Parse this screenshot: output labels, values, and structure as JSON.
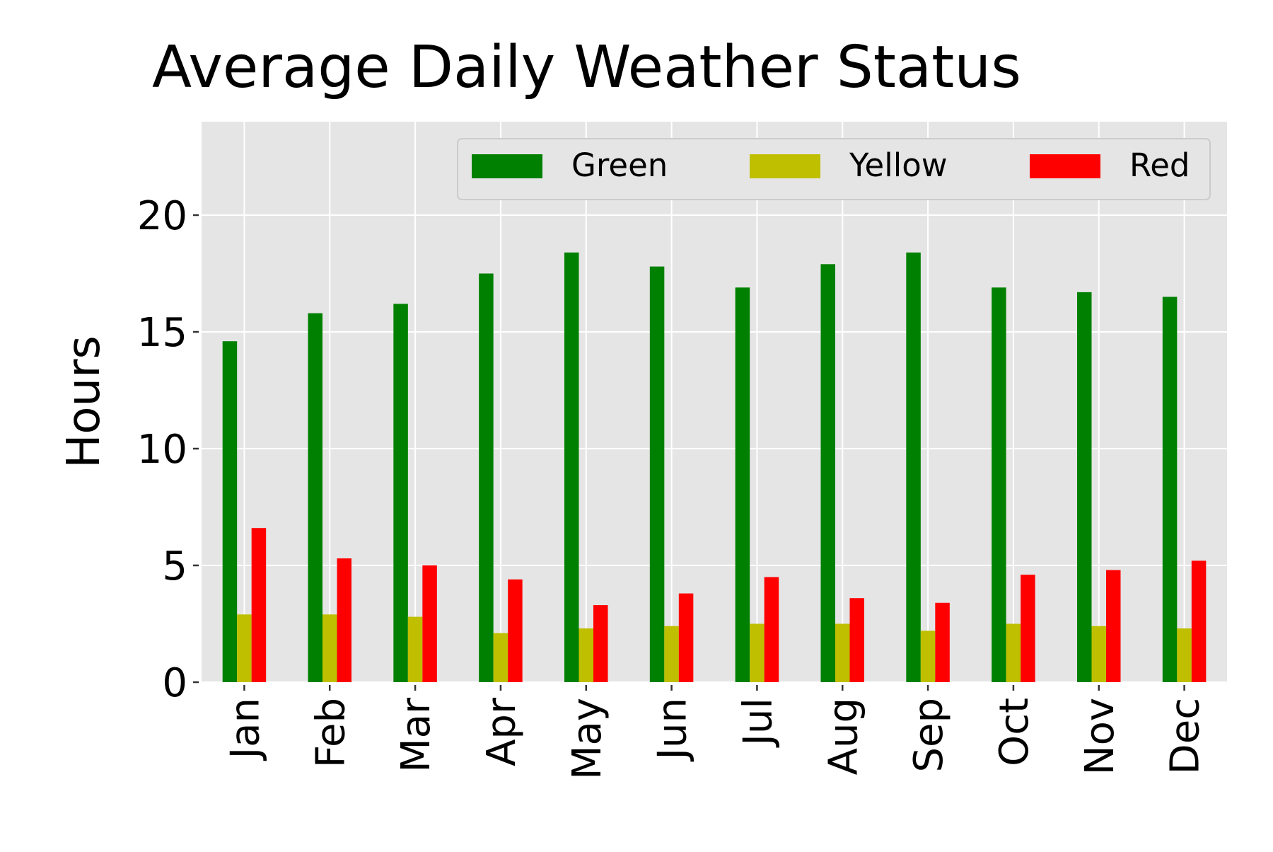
{
  "chart_data": {
    "type": "bar",
    "title": "Average Daily Weather Status",
    "xlabel": "",
    "ylabel": "Hours",
    "ylim": [
      0,
      24
    ],
    "yticks": [
      0,
      5,
      10,
      15,
      20
    ],
    "categories": [
      "Jan",
      "Feb",
      "Mar",
      "Apr",
      "May",
      "Jun",
      "Jul",
      "Aug",
      "Sep",
      "Oct",
      "Nov",
      "Dec"
    ],
    "series": [
      {
        "name": "Green",
        "color": "#008000",
        "values": [
          14.6,
          15.8,
          16.2,
          17.5,
          18.4,
          17.8,
          16.9,
          17.9,
          18.4,
          16.9,
          16.7,
          16.5
        ]
      },
      {
        "name": "Yellow",
        "color": "#bfbf00",
        "values": [
          2.9,
          2.9,
          2.8,
          2.1,
          2.3,
          2.4,
          2.5,
          2.5,
          2.2,
          2.5,
          2.4,
          2.3
        ]
      },
      {
        "name": "Red",
        "color": "#ff0000",
        "values": [
          6.6,
          5.3,
          5.0,
          4.4,
          3.3,
          3.8,
          4.5,
          3.6,
          3.4,
          4.6,
          4.8,
          5.2
        ]
      }
    ],
    "grid": true,
    "legend_position": "top-right",
    "background": "#e5e5e5"
  }
}
